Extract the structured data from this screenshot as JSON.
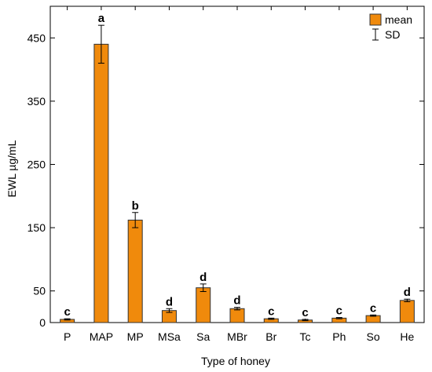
{
  "chart_data": {
    "type": "bar",
    "xlabel": "Type of honey",
    "ylabel": "EWL µg/mL",
    "ylim": [
      0,
      500
    ],
    "yticks": [
      0,
      50,
      150,
      250,
      350,
      450
    ],
    "categories": [
      "P",
      "MAP",
      "MP",
      "MSa",
      "Sa",
      "MBr",
      "Br",
      "Tc",
      "Ph",
      "So",
      "He"
    ],
    "series": [
      {
        "name": "mean",
        "values": [
          5,
          440,
          162,
          19,
          55,
          22,
          6,
          4,
          7,
          11,
          35
        ],
        "sd": [
          1,
          30,
          12,
          3,
          6,
          2,
          1,
          1,
          1,
          1,
          2
        ],
        "letters": [
          "c",
          "a",
          "b",
          "d",
          "d",
          "d",
          "c",
          "c",
          "c",
          "c",
          "d"
        ]
      }
    ],
    "legend": {
      "position": "top-right",
      "mean_label": "mean",
      "sd_label": "SD"
    },
    "bar_color": "#f08a0c",
    "bar_stroke": "#333333"
  }
}
